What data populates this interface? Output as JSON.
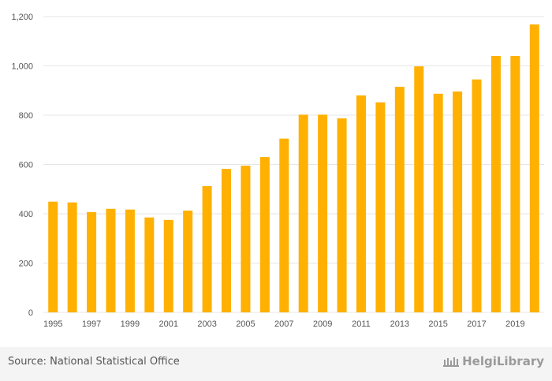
{
  "chart_data": {
    "type": "bar",
    "title": "",
    "xlabel": "",
    "ylabel": "",
    "x": [
      1995,
      1996,
      1997,
      1998,
      1999,
      2000,
      2001,
      2002,
      2003,
      2004,
      2005,
      2006,
      2007,
      2008,
      2009,
      2010,
      2011,
      2012,
      2013,
      2014,
      2015,
      2016,
      2017,
      2018,
      2019,
      2020
    ],
    "values": [
      449,
      446,
      407,
      420,
      417,
      385,
      375,
      413,
      512,
      582,
      595,
      630,
      705,
      802,
      802,
      787,
      880,
      852,
      915,
      998,
      887,
      896,
      945,
      1040,
      1040,
      1168
    ],
    "x_tick_labels": [
      "1995",
      "1997",
      "1999",
      "2001",
      "2003",
      "2005",
      "2007",
      "2009",
      "2011",
      "2013",
      "2015",
      "2017",
      "2019"
    ],
    "y_tick_values": [
      0,
      200,
      400,
      600,
      800,
      1000,
      1200
    ],
    "y_tick_labels": [
      "0",
      "200",
      "400",
      "600",
      "800",
      "1,000",
      "1,200"
    ],
    "ylim": [
      0,
      1200
    ],
    "grid": true,
    "bar_color": "#FFB000"
  },
  "footer": {
    "source": "Source: National Statistical Office",
    "logo_text": "HelgiLibrary",
    "logo_icon": "library-building-icon"
  }
}
